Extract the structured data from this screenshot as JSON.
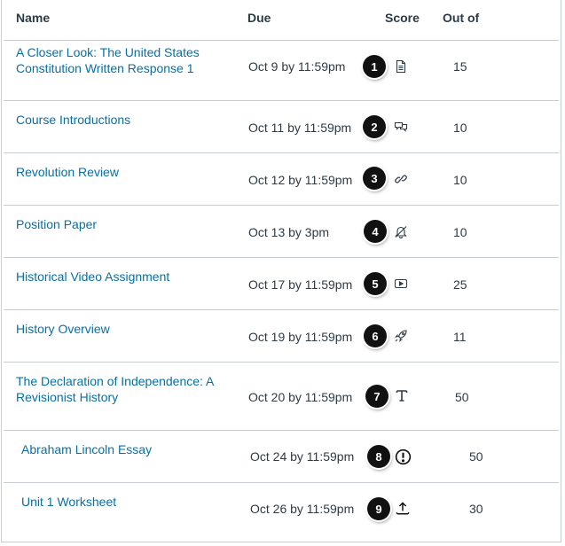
{
  "columns": {
    "name": "Name",
    "due": "Due",
    "score": "Score",
    "out_of": "Out of"
  },
  "rows": [
    {
      "name": "A Closer Look: The United States Constitution Written Response 1",
      "due": "Oct 9 by 11:59pm",
      "badge": "1",
      "icon": "document-icon",
      "out_of": "15"
    },
    {
      "name": "Course Introductions",
      "due": "Oct 11 by 11:59pm",
      "badge": "2",
      "icon": "discussion-icon",
      "out_of": "10"
    },
    {
      "name": "Revolution Review",
      "due": "Oct 12 by 11:59pm",
      "badge": "3",
      "icon": "link-icon",
      "out_of": "10"
    },
    {
      "name": "Position Paper",
      "due": "Oct 13 by 3pm",
      "badge": "4",
      "icon": "muted-bell-icon",
      "out_of": "10"
    },
    {
      "name": "Historical Video Assignment",
      "due": "Oct 17 by 11:59pm",
      "badge": "5",
      "icon": "video-icon",
      "out_of": "25"
    },
    {
      "name": "History Overview",
      "due": "Oct 19 by 11:59pm",
      "badge": "6",
      "icon": "rocket-icon",
      "out_of": "11"
    },
    {
      "name": "The Declaration of Independence: A Revisionist History",
      "due": "Oct 20 by 11:59pm",
      "badge": "7",
      "icon": "text-icon",
      "out_of": "50"
    },
    {
      "name": "Abraham Lincoln Essay",
      "due": "Oct 24 by 11:59pm",
      "badge": "8",
      "icon": "warning-circle-icon",
      "out_of": "50"
    },
    {
      "name": "Unit 1 Worksheet",
      "due": "Oct 26 by 11:59pm",
      "badge": "9",
      "icon": "upload-icon",
      "out_of": "30"
    }
  ],
  "colors": {
    "link": "#0770a3",
    "text": "#2d3b45",
    "border": "#c7cdd1",
    "badge": "#111111"
  }
}
